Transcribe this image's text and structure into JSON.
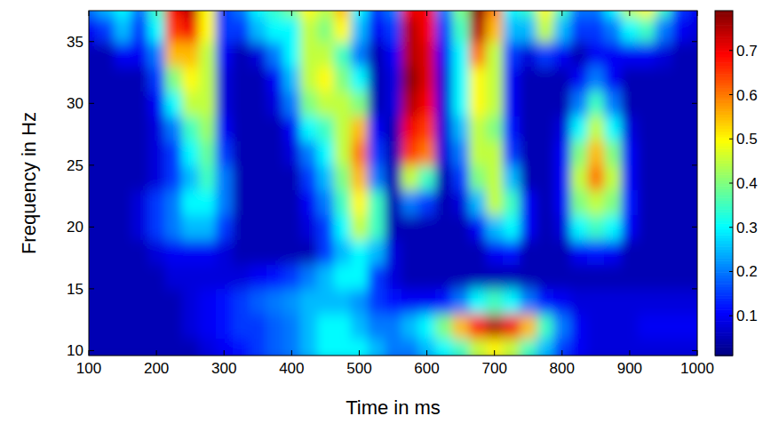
{
  "chart_data": {
    "type": "heatmap",
    "x_label": "Time in ms",
    "y_label": "Frequency in Hz",
    "xlim": [
      100,
      1000
    ],
    "ylim": [
      9.6,
      37.5
    ],
    "xticks": [
      100,
      200,
      300,
      400,
      500,
      600,
      700,
      800,
      900,
      1000
    ],
    "yticks": [
      10,
      15,
      20,
      25,
      30,
      35
    ],
    "x": [
      100,
      125,
      150,
      175,
      200,
      225,
      250,
      275,
      300,
      325,
      350,
      375,
      400,
      425,
      450,
      475,
      500,
      525,
      550,
      575,
      600,
      625,
      650,
      675,
      700,
      725,
      750,
      775,
      800,
      825,
      850,
      875,
      900,
      925,
      950,
      975,
      1000
    ],
    "y": [
      10,
      12,
      14,
      16,
      18,
      20,
      22,
      24,
      26,
      28,
      30,
      32,
      34,
      36,
      38
    ],
    "cells": [
      [
        0.05,
        0.05,
        0.05,
        0.05,
        0.05,
        0.05,
        0.05,
        0.08,
        0.1,
        0.12,
        0.15,
        0.18,
        0.2,
        0.25,
        0.3,
        0.3,
        0.3,
        0.25,
        0.2,
        0.2,
        0.25,
        0.3,
        0.35,
        0.45,
        0.5,
        0.45,
        0.35,
        0.25,
        0.15,
        0.1,
        0.08,
        0.08,
        0.08,
        0.08,
        0.08,
        0.08,
        0.08
      ],
      [
        0.05,
        0.05,
        0.05,
        0.05,
        0.05,
        0.05,
        0.08,
        0.1,
        0.12,
        0.15,
        0.15,
        0.18,
        0.2,
        0.25,
        0.3,
        0.3,
        0.25,
        0.2,
        0.2,
        0.25,
        0.3,
        0.4,
        0.55,
        0.68,
        0.75,
        0.7,
        0.55,
        0.35,
        0.2,
        0.1,
        0.08,
        0.08,
        0.08,
        0.1,
        0.1,
        0.1,
        0.1
      ],
      [
        0.05,
        0.05,
        0.05,
        0.05,
        0.05,
        0.05,
        0.08,
        0.1,
        0.12,
        0.15,
        0.18,
        0.2,
        0.22,
        0.25,
        0.25,
        0.25,
        0.22,
        0.15,
        0.12,
        0.1,
        0.1,
        0.12,
        0.2,
        0.3,
        0.35,
        0.3,
        0.2,
        0.12,
        0.1,
        0.08,
        0.08,
        0.08,
        0.08,
        0.08,
        0.08,
        0.08,
        0.08
      ],
      [
        0.05,
        0.05,
        0.05,
        0.05,
        0.05,
        0.08,
        0.08,
        0.08,
        0.08,
        0.08,
        0.1,
        0.12,
        0.15,
        0.2,
        0.25,
        0.3,
        0.3,
        0.15,
        0.08,
        0.05,
        0.05,
        0.05,
        0.05,
        0.05,
        0.05,
        0.05,
        0.05,
        0.05,
        0.05,
        0.05,
        0.05,
        0.05,
        0.05,
        0.05,
        0.05,
        0.05,
        0.05
      ],
      [
        0.05,
        0.05,
        0.05,
        0.05,
        0.08,
        0.1,
        0.1,
        0.1,
        0.08,
        0.05,
        0.05,
        0.05,
        0.05,
        0.05,
        0.15,
        0.25,
        0.3,
        0.25,
        0.08,
        0.05,
        0.05,
        0.05,
        0.05,
        0.05,
        0.1,
        0.12,
        0.05,
        0.05,
        0.05,
        0.1,
        0.12,
        0.1,
        0.05,
        0.05,
        0.05,
        0.05,
        0.05
      ],
      [
        0.05,
        0.05,
        0.05,
        0.08,
        0.15,
        0.2,
        0.25,
        0.25,
        0.15,
        0.05,
        0.05,
        0.05,
        0.05,
        0.08,
        0.15,
        0.3,
        0.45,
        0.35,
        0.05,
        0.05,
        0.05,
        0.05,
        0.05,
        0.1,
        0.25,
        0.3,
        0.1,
        0.05,
        0.08,
        0.3,
        0.35,
        0.3,
        0.1,
        0.05,
        0.05,
        0.05,
        0.05
      ],
      [
        0.05,
        0.05,
        0.05,
        0.08,
        0.15,
        0.2,
        0.3,
        0.3,
        0.2,
        0.05,
        0.05,
        0.05,
        0.05,
        0.1,
        0.2,
        0.35,
        0.5,
        0.35,
        0.05,
        0.2,
        0.15,
        0.05,
        0.08,
        0.25,
        0.45,
        0.35,
        0.1,
        0.05,
        0.1,
        0.4,
        0.45,
        0.4,
        0.12,
        0.05,
        0.05,
        0.05,
        0.05
      ],
      [
        0.05,
        0.05,
        0.05,
        0.05,
        0.08,
        0.15,
        0.25,
        0.35,
        0.2,
        0.05,
        0.05,
        0.05,
        0.05,
        0.15,
        0.25,
        0.4,
        0.55,
        0.2,
        0.05,
        0.45,
        0.35,
        0.05,
        0.15,
        0.4,
        0.45,
        0.25,
        0.05,
        0.05,
        0.1,
        0.45,
        0.6,
        0.45,
        0.1,
        0.05,
        0.05,
        0.05,
        0.05
      ],
      [
        0.05,
        0.05,
        0.05,
        0.05,
        0.08,
        0.15,
        0.3,
        0.38,
        0.15,
        0.05,
        0.05,
        0.05,
        0.08,
        0.2,
        0.3,
        0.45,
        0.6,
        0.15,
        0.05,
        0.65,
        0.6,
        0.08,
        0.2,
        0.45,
        0.45,
        0.15,
        0.05,
        0.05,
        0.1,
        0.4,
        0.55,
        0.4,
        0.1,
        0.05,
        0.05,
        0.05,
        0.05
      ],
      [
        0.05,
        0.05,
        0.05,
        0.05,
        0.08,
        0.2,
        0.35,
        0.42,
        0.1,
        0.05,
        0.05,
        0.05,
        0.1,
        0.3,
        0.35,
        0.45,
        0.55,
        0.1,
        0.05,
        0.7,
        0.65,
        0.08,
        0.25,
        0.45,
        0.4,
        0.12,
        0.05,
        0.05,
        0.08,
        0.3,
        0.45,
        0.3,
        0.08,
        0.05,
        0.05,
        0.05,
        0.05
      ],
      [
        0.05,
        0.05,
        0.05,
        0.05,
        0.1,
        0.3,
        0.45,
        0.45,
        0.08,
        0.05,
        0.05,
        0.08,
        0.2,
        0.4,
        0.45,
        0.45,
        0.4,
        0.05,
        0.08,
        0.75,
        0.7,
        0.08,
        0.3,
        0.5,
        0.45,
        0.1,
        0.05,
        0.05,
        0.05,
        0.2,
        0.35,
        0.2,
        0.05,
        0.05,
        0.05,
        0.05,
        0.05
      ],
      [
        0.05,
        0.05,
        0.05,
        0.05,
        0.15,
        0.4,
        0.5,
        0.45,
        0.08,
        0.05,
        0.05,
        0.1,
        0.25,
        0.45,
        0.5,
        0.4,
        0.3,
        0.05,
        0.08,
        0.78,
        0.72,
        0.08,
        0.3,
        0.5,
        0.45,
        0.1,
        0.05,
        0.05,
        0.05,
        0.1,
        0.2,
        0.1,
        0.05,
        0.05,
        0.05,
        0.05,
        0.05
      ],
      [
        0.05,
        0.05,
        0.1,
        0.1,
        0.2,
        0.55,
        0.55,
        0.45,
        0.1,
        0.05,
        0.08,
        0.2,
        0.3,
        0.45,
        0.45,
        0.35,
        0.2,
        0.05,
        0.1,
        0.75,
        0.72,
        0.1,
        0.3,
        0.6,
        0.45,
        0.15,
        0.08,
        0.15,
        0.1,
        0.05,
        0.1,
        0.1,
        0.1,
        0.1,
        0.08,
        0.05,
        0.05
      ],
      [
        0.1,
        0.15,
        0.25,
        0.15,
        0.3,
        0.65,
        0.7,
        0.5,
        0.15,
        0.15,
        0.25,
        0.3,
        0.3,
        0.45,
        0.4,
        0.5,
        0.25,
        0.1,
        0.15,
        0.75,
        0.7,
        0.15,
        0.35,
        0.75,
        0.55,
        0.25,
        0.25,
        0.45,
        0.25,
        0.15,
        0.15,
        0.2,
        0.3,
        0.35,
        0.2,
        0.1,
        0.08
      ],
      [
        0.2,
        0.25,
        0.3,
        0.2,
        0.35,
        0.7,
        0.75,
        0.5,
        0.15,
        0.2,
        0.3,
        0.35,
        0.4,
        0.5,
        0.45,
        0.55,
        0.3,
        0.15,
        0.2,
        0.7,
        0.7,
        0.2,
        0.4,
        0.8,
        0.6,
        0.3,
        0.35,
        0.5,
        0.35,
        0.2,
        0.2,
        0.3,
        0.45,
        0.5,
        0.35,
        0.15,
        0.1
      ]
    ],
    "colorbar": {
      "range": [
        0.01,
        0.79
      ],
      "ticks": [
        0.1,
        0.2,
        0.3,
        0.4,
        0.5,
        0.6,
        0.7
      ]
    }
  }
}
